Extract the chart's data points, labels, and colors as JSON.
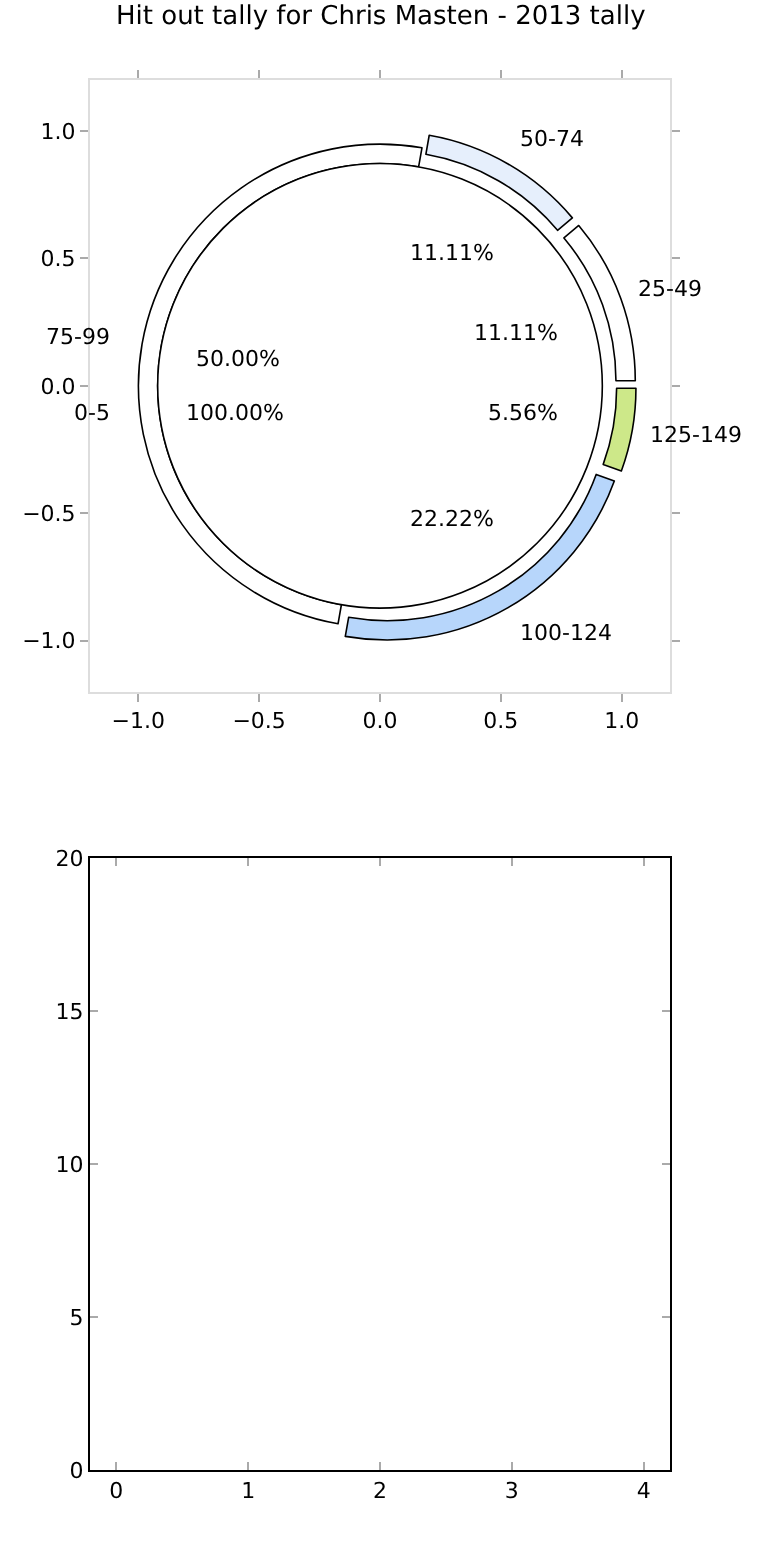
{
  "chart_data": [
    {
      "type": "scatter",
      "title": "Hit out tally for Chris Masten - 2013 tally",
      "xlim": [
        -1.2,
        1.2
      ],
      "ylim": [
        -1.2,
        1.2
      ],
      "xticks": [
        {
          "value": -1,
          "label": "−1.0"
        },
        {
          "value": -0.5,
          "label": "−0.5"
        },
        {
          "value": 0,
          "label": "0.0"
        },
        {
          "value": 0.5,
          "label": "0.5"
        },
        {
          "value": 1,
          "label": "1.0"
        }
      ],
      "yticks": [
        {
          "value": -1,
          "label": "−1.0"
        },
        {
          "value": -0.5,
          "label": "−0.5"
        },
        {
          "value": 0,
          "label": "0.0"
        },
        {
          "value": 0.5,
          "label": "0.5"
        },
        {
          "value": 1,
          "label": "1.0"
        }
      ]
    },
    {
      "type": "donut",
      "categories": [
        "50-74",
        "25-49",
        "125-149",
        "100-124",
        "75-99"
      ],
      "values": [
        11.11,
        11.11,
        5.56,
        22.22,
        50.0
      ],
      "value_labels": [
        "11.11%",
        "11.11%",
        "5.56%",
        "22.22%",
        "50.00%"
      ],
      "colors": [
        "#e6effc",
        "#ffffff",
        "#cde889",
        "#b7d6fb",
        "#ffffff"
      ]
    },
    {
      "type": "pie",
      "categories": [
        "0-5"
      ],
      "values": [
        100.0
      ],
      "value_labels": [
        "100.00%"
      ],
      "colors": [
        "#ffffff"
      ]
    },
    {
      "type": "scatter",
      "xlim": [
        -0.2,
        4.2
      ],
      "ylim": [
        0,
        20
      ],
      "xticks": [
        0,
        1,
        2,
        3,
        4
      ],
      "yticks": [
        0,
        5,
        10,
        15,
        20
      ]
    }
  ]
}
